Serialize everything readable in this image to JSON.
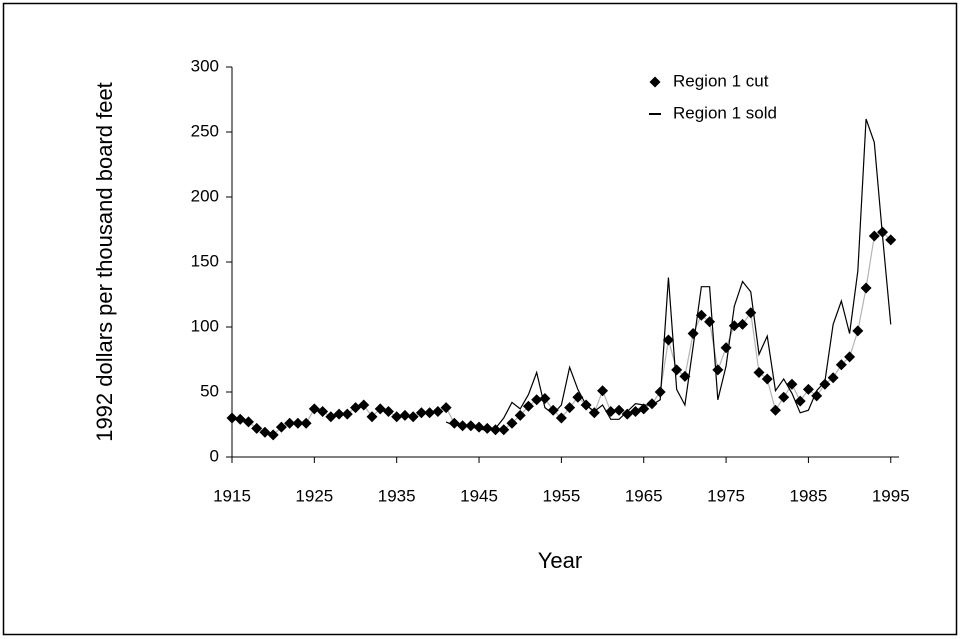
{
  "chart_data": {
    "type": "line",
    "xlabel": "Year",
    "ylabel": "1992 dollars per thousand board feet",
    "xlim": [
      1915,
      1996
    ],
    "xticks": [
      1915,
      1925,
      1935,
      1945,
      1955,
      1965,
      1975,
      1985,
      1995
    ],
    "ylim": [
      0,
      300
    ],
    "yticks": [
      0,
      50,
      100,
      150,
      200,
      250,
      300
    ],
    "grid": false,
    "legend": "upper right",
    "series": [
      {
        "name": "Region 1 cut",
        "color": "#000000",
        "line_color": "#b4b4b4",
        "marker": "diamond",
        "x": [
          1915,
          1916,
          1917,
          1918,
          1919,
          1920,
          1921,
          1922,
          1923,
          1924,
          1925,
          1926,
          1927,
          1928,
          1929,
          1930,
          1931,
          1932,
          1933,
          1934,
          1935,
          1936,
          1937,
          1938,
          1939,
          1940,
          1941,
          1942,
          1943,
          1944,
          1945,
          1946,
          1947,
          1948,
          1949,
          1950,
          1951,
          1952,
          1953,
          1954,
          1955,
          1956,
          1957,
          1958,
          1959,
          1960,
          1961,
          1962,
          1963,
          1964,
          1965,
          1966,
          1967,
          1968,
          1969,
          1970,
          1971,
          1972,
          1973,
          1974,
          1975,
          1976,
          1977,
          1978,
          1979,
          1980,
          1981,
          1982,
          1983,
          1984,
          1985,
          1986,
          1987,
          1988,
          1989,
          1990,
          1991,
          1992,
          1993,
          1994,
          1995
        ],
        "values": [
          30,
          29,
          27,
          22,
          19,
          17,
          23,
          26,
          26,
          26,
          37,
          35,
          31,
          33,
          33,
          38,
          40,
          31,
          37,
          35,
          31,
          32,
          31,
          34,
          34,
          35,
          38,
          26,
          24,
          24,
          23,
          22,
          21,
          21,
          26,
          32,
          39,
          44,
          45,
          36,
          30,
          38,
          46,
          40,
          34,
          51,
          35,
          36,
          33,
          35,
          37,
          41,
          50,
          90,
          67,
          62,
          95,
          109,
          104,
          67,
          84,
          101,
          102,
          111,
          65,
          60,
          36,
          46,
          56,
          43,
          52,
          47,
          56,
          61,
          71,
          77,
          97,
          130,
          170,
          173,
          167
        ]
      },
      {
        "name": "Region 1 sold",
        "color": "#000000",
        "marker": "none",
        "x": [
          1941,
          1942,
          1943,
          1944,
          1945,
          1946,
          1947,
          1948,
          1949,
          1950,
          1951,
          1952,
          1953,
          1954,
          1955,
          1956,
          1957,
          1958,
          1959,
          1960,
          1961,
          1962,
          1963,
          1964,
          1965,
          1966,
          1967,
          1968,
          1969,
          1970,
          1971,
          1972,
          1973,
          1974,
          1975,
          1976,
          1977,
          1978,
          1979,
          1980,
          1981,
          1982,
          1983,
          1984,
          1985,
          1986,
          1987,
          1988,
          1989,
          1990,
          1991,
          1992,
          1993,
          1994,
          1995
        ],
        "values": [
          27,
          24,
          25,
          23,
          22,
          20,
          22,
          30,
          42,
          37,
          48,
          65,
          38,
          33,
          40,
          69,
          52,
          40,
          35,
          40,
          29,
          29,
          35,
          41,
          40,
          40,
          44,
          138,
          52,
          40,
          85,
          131,
          131,
          44,
          70,
          116,
          135,
          127,
          79,
          93,
          51,
          60,
          49,
          34,
          36,
          51,
          58,
          102,
          120,
          95,
          143,
          260,
          242,
          170,
          102
        ]
      }
    ]
  }
}
